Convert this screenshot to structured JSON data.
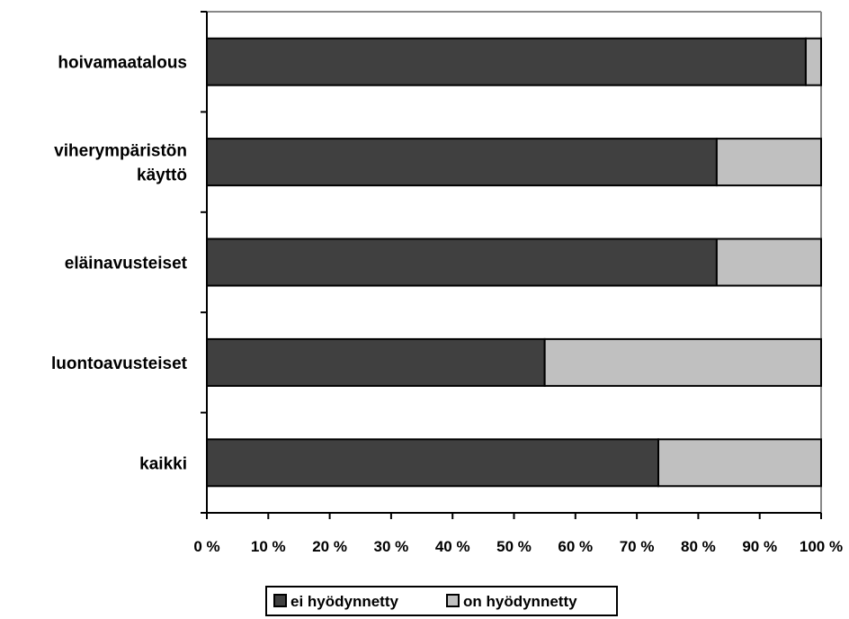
{
  "chart_data": {
    "type": "bar",
    "orientation": "horizontal",
    "stacked": "percent",
    "categories": [
      [
        "hoivamaatalous"
      ],
      [
        "viherympäristön",
        "käyttö"
      ],
      [
        "eläinavusteiset"
      ],
      [
        "luontoavusteiset"
      ],
      [
        "kaikki"
      ]
    ],
    "series": [
      {
        "name": "ei hyödynnetty",
        "color": "#404040",
        "values": [
          97.5,
          83,
          83,
          55,
          73.5
        ]
      },
      {
        "name": "on hyödynnetty",
        "color": "#c0c0c0",
        "values": [
          2.5,
          17,
          17,
          45,
          26.5
        ]
      }
    ],
    "x_ticks": [
      "0 %",
      "10 %",
      "20 %",
      "30 %",
      "40 %",
      "50 %",
      "60 %",
      "70 %",
      "80 %",
      "90 %",
      "100 %"
    ],
    "xlim": [
      0,
      100
    ],
    "grid": false,
    "legend": "bottom"
  }
}
